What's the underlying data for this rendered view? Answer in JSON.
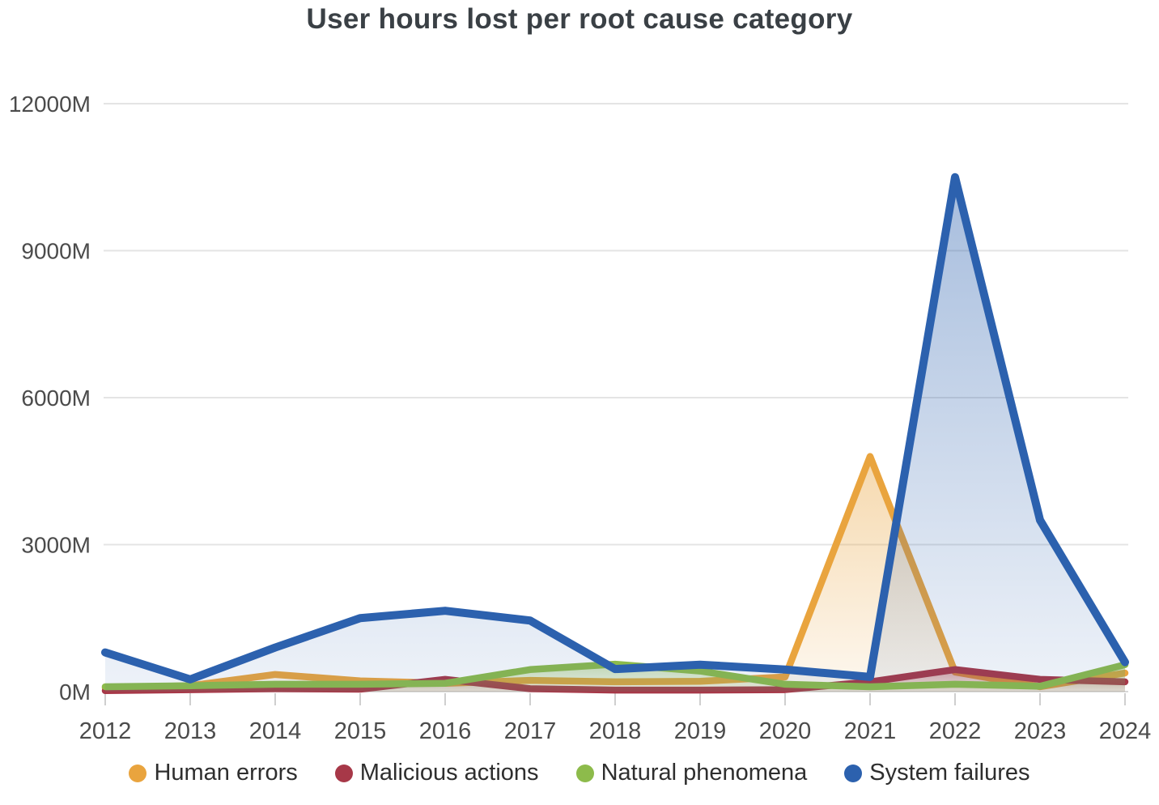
{
  "title": "User hours lost per root cause category",
  "chart_data": {
    "type": "area",
    "x": [
      2012,
      2013,
      2014,
      2015,
      2016,
      2017,
      2018,
      2019,
      2020,
      2021,
      2022,
      2023,
      2024
    ],
    "x_labels": [
      "2012",
      "2013",
      "2014",
      "2015",
      "2016",
      "2017",
      "2018",
      "2019",
      "2020",
      "2021",
      "2022",
      "2023",
      "2024"
    ],
    "series": [
      {
        "name": "Human errors",
        "color": "#E9A43E",
        "values": [
          80,
          120,
          350,
          220,
          170,
          230,
          200,
          210,
          300,
          4800,
          400,
          100,
          380
        ]
      },
      {
        "name": "Malicious actions",
        "color": "#A73848",
        "values": [
          20,
          40,
          60,
          50,
          250,
          60,
          30,
          30,
          40,
          200,
          450,
          250,
          200
        ]
      },
      {
        "name": "Natural phenomena",
        "color": "#8DBB4B",
        "values": [
          100,
          120,
          150,
          150,
          170,
          450,
          560,
          420,
          150,
          100,
          150,
          110,
          550
        ]
      },
      {
        "name": "System failures",
        "color": "#2C61AE",
        "values": [
          800,
          250,
          900,
          1500,
          1650,
          1450,
          460,
          550,
          450,
          300,
          10500,
          3500,
          600
        ]
      }
    ],
    "title": "User hours lost per root cause category",
    "xlabel": "",
    "ylabel": "",
    "unit": "M",
    "ytick_values": [
      0,
      3000,
      6000,
      9000,
      12000
    ],
    "ytick_labels": [
      "0M",
      "3000M",
      "6000M",
      "9000M",
      "12000M"
    ],
    "ylim": [
      0,
      12000
    ],
    "grid": true,
    "legend_position": "bottom",
    "area_style": "gradient-fill-under-line"
  },
  "colors": {
    "background": "#ffffff",
    "title_text": "#3a4045",
    "axis_text": "#4b4b4b",
    "legend_text": "#2e2e2e",
    "gridline": "#e4e4e4",
    "axis_line": "#d9d9d9",
    "tick": "#cfcfcf"
  }
}
